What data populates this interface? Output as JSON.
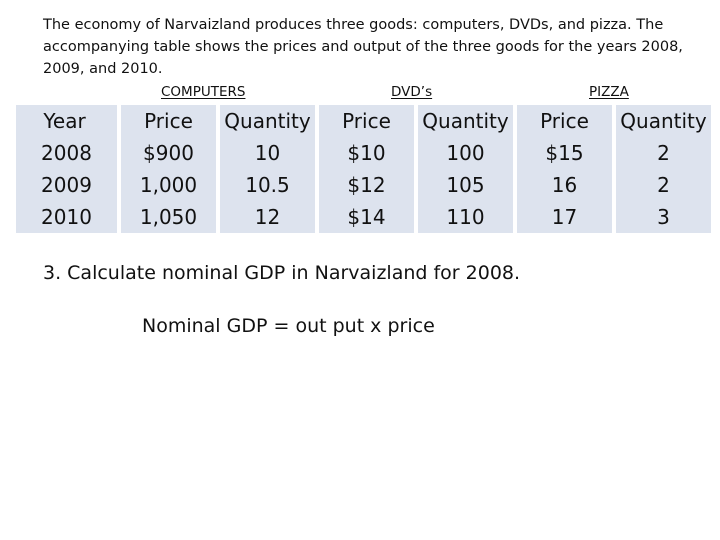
{
  "intro_text": "The economy of Narvaizland produces three goods: computers, DVDs, and pizza. The accompanying table shows the prices and output of the three goods for the years 2008, 2009, and 2010.",
  "group_headings": {
    "computers": "COMPUTERS",
    "dvds": "DVD’s",
    "pizza": "PIZZA"
  },
  "table": {
    "columns": [
      "Year",
      "Price",
      "Quantity",
      "Price",
      "Quantity",
      "Price",
      "Quantity"
    ],
    "rows": [
      [
        "2008",
        "$900",
        "10",
        "$10",
        "100",
        "$15",
        "2"
      ],
      [
        "2009",
        "1,000",
        "10.5",
        "$12",
        "105",
        "16",
        "2"
      ],
      [
        "2010",
        "1,050",
        "12",
        "$14",
        "110",
        "17",
        "3"
      ]
    ]
  },
  "question": "3. Calculate nominal GDP in Narvaizland for 2008.",
  "formula": "Nominal GDP = out put  x  price"
}
